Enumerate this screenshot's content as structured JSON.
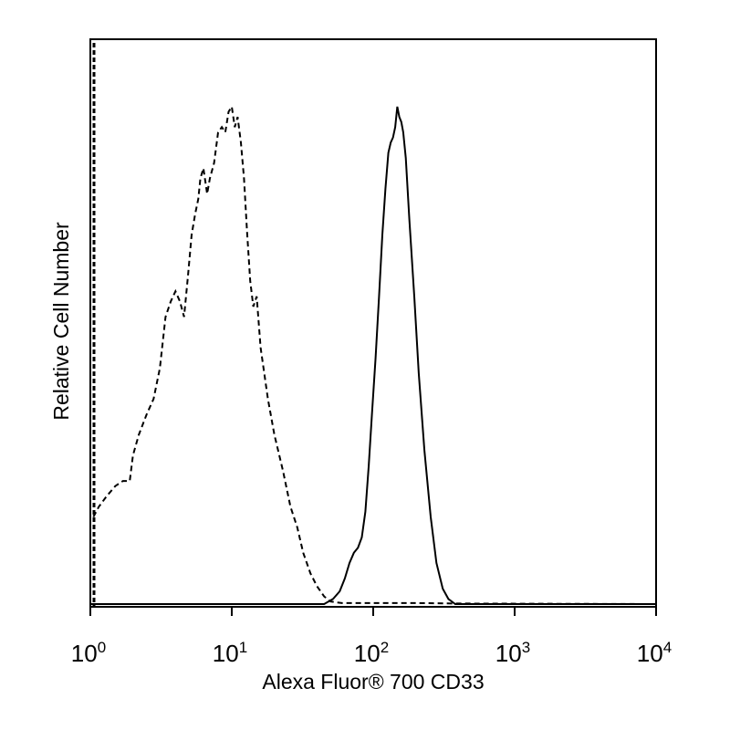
{
  "chart_data": {
    "type": "line",
    "title": "",
    "xlabel": "Alexa Fluor® 700 CD33",
    "ylabel": "Relative Cell Number",
    "x_scale": "log",
    "xlim": [
      1,
      10000
    ],
    "ylim": [
      0,
      1
    ],
    "grid": false,
    "legend": "none",
    "x_ticks": [
      {
        "value": 1,
        "base": "10",
        "exp": "0"
      },
      {
        "value": 10,
        "base": "10",
        "exp": "1"
      },
      {
        "value": 100,
        "base": "10",
        "exp": "2"
      },
      {
        "value": 1000,
        "base": "10",
        "exp": "3"
      },
      {
        "value": 10000,
        "base": "10",
        "exp": "4"
      }
    ],
    "series": [
      {
        "style": "dashed",
        "color": "#000000",
        "points": [
          [
            1.05,
            0.17
          ],
          [
            1.15,
            0.19
          ],
          [
            1.3,
            0.21
          ],
          [
            1.5,
            0.23
          ],
          [
            1.7,
            0.24
          ],
          [
            1.9,
            0.24
          ],
          [
            2.0,
            0.29
          ],
          [
            2.2,
            0.33
          ],
          [
            2.5,
            0.37
          ],
          [
            2.8,
            0.4
          ],
          [
            3.1,
            0.46
          ],
          [
            3.4,
            0.56
          ],
          [
            3.7,
            0.59
          ],
          [
            4.0,
            0.61
          ],
          [
            4.3,
            0.59
          ],
          [
            4.6,
            0.56
          ],
          [
            4.9,
            0.64
          ],
          [
            5.2,
            0.72
          ],
          [
            5.5,
            0.76
          ],
          [
            5.8,
            0.79
          ],
          [
            6.0,
            0.83
          ],
          [
            6.3,
            0.85
          ],
          [
            6.7,
            0.8
          ],
          [
            7.0,
            0.83
          ],
          [
            7.5,
            0.86
          ],
          [
            8.0,
            0.92
          ],
          [
            8.5,
            0.93
          ],
          [
            9.0,
            0.92
          ],
          [
            9.5,
            0.96
          ],
          [
            10.0,
            0.97
          ],
          [
            10.5,
            0.93
          ],
          [
            11.0,
            0.95
          ],
          [
            11.6,
            0.9
          ],
          [
            12.2,
            0.83
          ],
          [
            12.8,
            0.73
          ],
          [
            13.5,
            0.63
          ],
          [
            14.2,
            0.58
          ],
          [
            15.0,
            0.6
          ],
          [
            16.0,
            0.5
          ],
          [
            18.0,
            0.4
          ],
          [
            20.0,
            0.33
          ],
          [
            23.0,
            0.26
          ],
          [
            26.0,
            0.19
          ],
          [
            29.0,
            0.15
          ],
          [
            32.0,
            0.1
          ],
          [
            36.0,
            0.06
          ],
          [
            40.0,
            0.035
          ],
          [
            45.0,
            0.015
          ],
          [
            50.0,
            0.005
          ],
          [
            60.0,
            0.002
          ],
          [
            80.0,
            0.002
          ],
          [
            120.0,
            0.002
          ],
          [
            200.0,
            0.002
          ],
          [
            400.0,
            0.001
          ],
          [
            10000.0,
            0.0
          ]
        ]
      },
      {
        "style": "solid",
        "color": "#000000",
        "points": [
          [
            1.0,
            0.0
          ],
          [
            45.0,
            0.0
          ],
          [
            52.0,
            0.01
          ],
          [
            58.0,
            0.025
          ],
          [
            63.0,
            0.05
          ],
          [
            68.0,
            0.08
          ],
          [
            73.0,
            0.1
          ],
          [
            78.0,
            0.11
          ],
          [
            83.0,
            0.13
          ],
          [
            88.0,
            0.18
          ],
          [
            93.0,
            0.27
          ],
          [
            98.0,
            0.37
          ],
          [
            104.0,
            0.48
          ],
          [
            110.0,
            0.6
          ],
          [
            116.0,
            0.72
          ],
          [
            122.0,
            0.81
          ],
          [
            128.0,
            0.88
          ],
          [
            133.0,
            0.9
          ],
          [
            138.0,
            0.91
          ],
          [
            143.0,
            0.93
          ],
          [
            148.0,
            0.97
          ],
          [
            153.0,
            0.95
          ],
          [
            158.0,
            0.94
          ],
          [
            163.0,
            0.92
          ],
          [
            170.0,
            0.87
          ],
          [
            180.0,
            0.75
          ],
          [
            195.0,
            0.6
          ],
          [
            210.0,
            0.45
          ],
          [
            230.0,
            0.3
          ],
          [
            255.0,
            0.17
          ],
          [
            280.0,
            0.08
          ],
          [
            310.0,
            0.03
          ],
          [
            340.0,
            0.01
          ],
          [
            380.0,
            0.0
          ],
          [
            10000.0,
            0.0
          ]
        ]
      }
    ]
  }
}
